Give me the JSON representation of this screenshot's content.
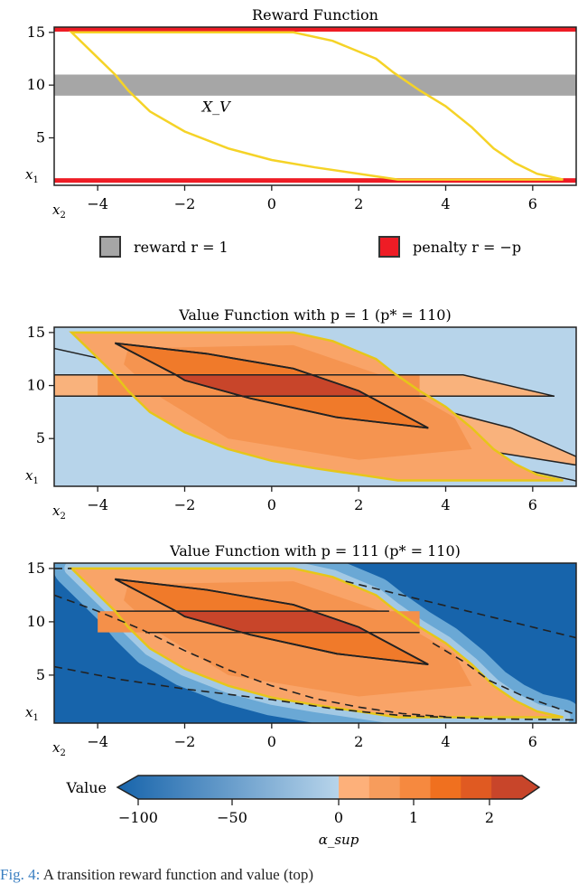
{
  "chart_data": [
    {
      "type": "heatmap",
      "title": "Reward Function",
      "xlabel": "x_2",
      "ylabel": "x_1",
      "xlim": [
        -5,
        7
      ],
      "ylim": [
        0.5,
        15.5
      ],
      "xticks": [
        -4,
        -2,
        0,
        2,
        4,
        6
      ],
      "yticks": [
        15,
        10,
        5
      ],
      "reward_band": {
        "y": [
          9,
          11
        ],
        "color": "#a6a6a6"
      },
      "penalty_lines": {
        "y": [
          1,
          15.3
        ],
        "color": "#ee1c25"
      },
      "annotation": "X_V",
      "legend": [
        {
          "label": "reward r = 1",
          "color": "#a6a6a6"
        },
        {
          "label": "penalty r = −p",
          "color": "#ee1c25"
        }
      ],
      "legend_placement": "bottom"
    },
    {
      "type": "heatmap",
      "title": "Value Function with p = 1 (p* = 110)",
      "xlabel": "x_2",
      "ylabel": "x_1",
      "xlim": [
        -5,
        7
      ],
      "ylim": [
        0.5,
        15.5
      ],
      "xticks": [
        -4,
        -2,
        0,
        2,
        4,
        6
      ],
      "yticks": [
        15,
        10,
        5
      ],
      "background_color": "#b7d4ea"
    },
    {
      "type": "heatmap",
      "title": "Value Function with p = 111 (p* = 110)",
      "xlabel": "x_2",
      "ylabel": "x_1",
      "xlim": [
        -5,
        7
      ],
      "ylim": [
        0.5,
        15.5
      ],
      "xticks": [
        -4,
        -2,
        0,
        2,
        4,
        6
      ],
      "yticks": [
        15,
        10,
        5
      ],
      "background_color": "#1764ab"
    }
  ],
  "viability_boundary": [
    [
      -4.6,
      15
    ],
    [
      0.5,
      15
    ],
    [
      1.4,
      14.2
    ],
    [
      2.4,
      12.5
    ],
    [
      2.8,
      11.2
    ],
    [
      3.4,
      9.5
    ],
    [
      4,
      8
    ],
    [
      4.6,
      6
    ],
    [
      5.1,
      4
    ],
    [
      5.6,
      2.6
    ],
    [
      6.1,
      1.6
    ],
    [
      6.7,
      1.05
    ],
    [
      2.9,
      1.05
    ],
    [
      1,
      2.2
    ],
    [
      0,
      2.9
    ],
    [
      -1,
      4
    ],
    [
      -2,
      5.6
    ],
    [
      -2.8,
      7.5
    ],
    [
      -3.3,
      9.5
    ],
    [
      -3.6,
      11
    ],
    [
      -4.1,
      13
    ],
    [
      -4.6,
      15
    ]
  ],
  "inner_region": [
    [
      -3.6,
      14
    ],
    [
      -1.5,
      13
    ],
    [
      0.5,
      11.6
    ],
    [
      2,
      9.5
    ],
    [
      3.6,
      6
    ],
    [
      1.5,
      7
    ],
    [
      -0.5,
      8.8
    ],
    [
      -2,
      10.5
    ],
    [
      -2.2,
      11
    ]
  ],
  "colorbar": {
    "label": "Value",
    "xlabel": "α_sup",
    "ticks": [
      "−100",
      "−50",
      "0",
      "1",
      "2"
    ],
    "negative_colors": [
      "#1764ab",
      "#b7d4ea"
    ],
    "positive_colors": [
      "#fdb07a",
      "#f79c5c",
      "#f6893f",
      "#f0701f",
      "#e05a22",
      "#c8452a"
    ]
  },
  "caption": {
    "fig": "Fig. 4:",
    "text": "A transition reward function and value (top)"
  }
}
